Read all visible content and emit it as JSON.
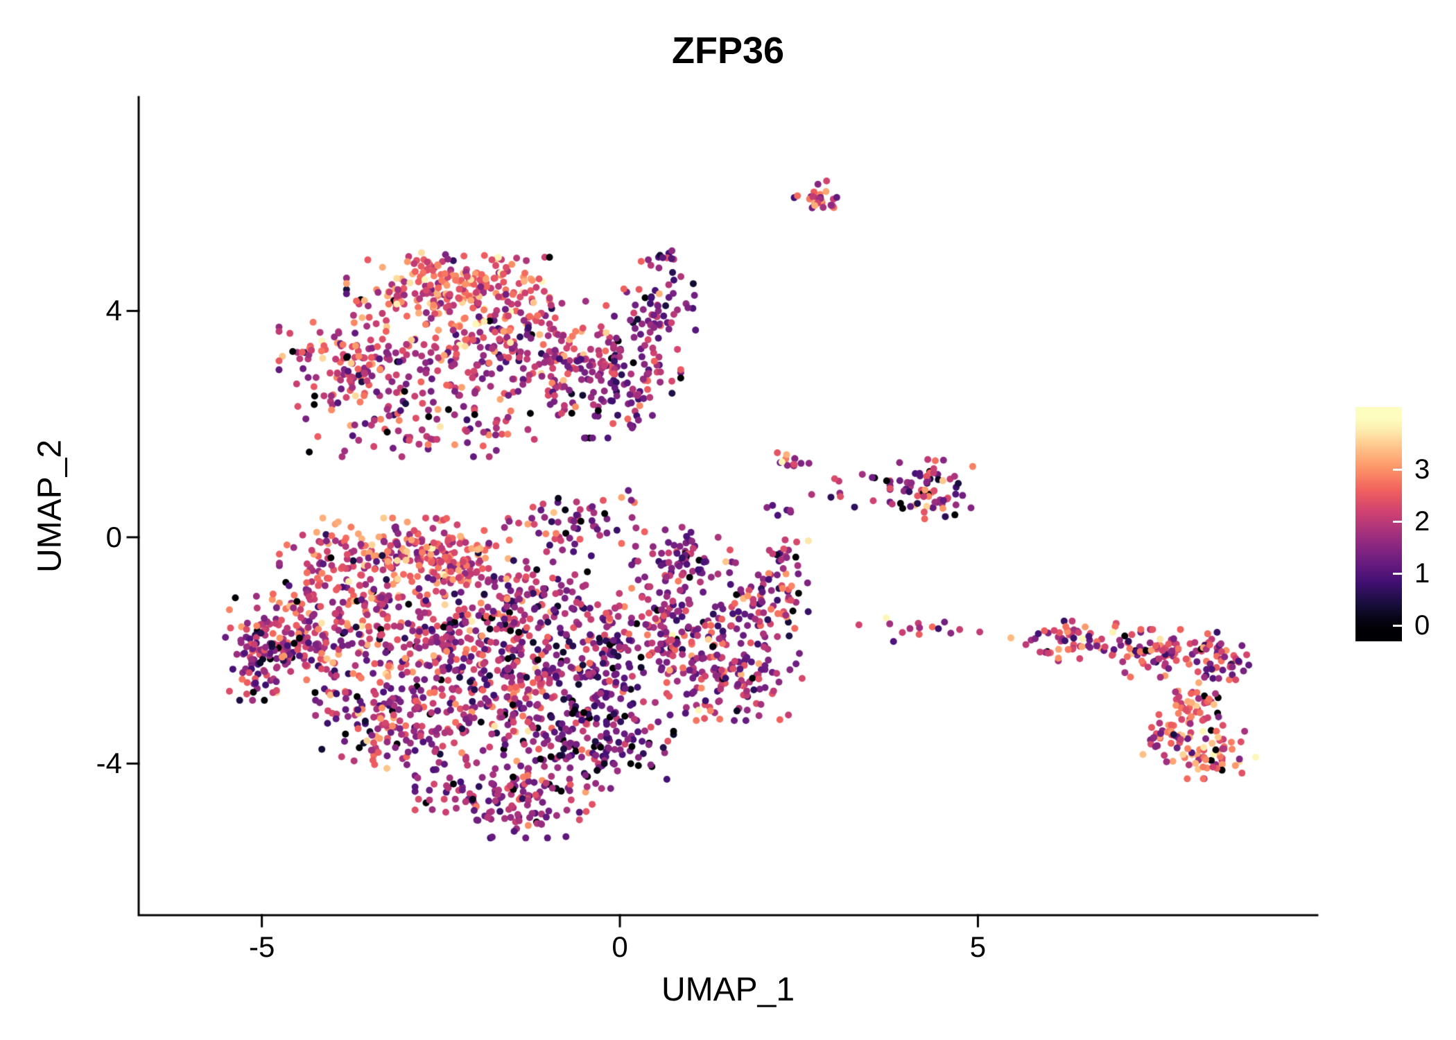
{
  "chart_data": {
    "type": "scatter",
    "title": "ZFP36",
    "xlabel": "UMAP_1",
    "ylabel": "UMAP_2",
    "xlim": [
      -6.72,
      9.74
    ],
    "ylim": [
      -6.68,
      7.78
    ],
    "grid": false,
    "background": "#ffffff",
    "axis_color": "#000000",
    "x_ticks": [
      {
        "label": "-5",
        "value": -5
      },
      {
        "label": "0",
        "value": 0
      },
      {
        "label": "5",
        "value": 5
      }
    ],
    "y_ticks": [
      {
        "label": "4",
        "value": 4
      },
      {
        "label": "0",
        "value": 0
      },
      {
        "label": "-4",
        "value": -4
      }
    ],
    "legend": {
      "position": "right",
      "vmin": 0,
      "vmax": 3.9,
      "pad": 0.3,
      "ticks": [
        {
          "label": "3",
          "value": 3
        },
        {
          "label": "2",
          "value": 2
        },
        {
          "label": "1",
          "value": 1
        },
        {
          "label": "0",
          "value": 0
        }
      ]
    },
    "colormap": {
      "name": "magma",
      "stops": [
        "#000004",
        "#180f3e",
        "#451077",
        "#721f81",
        "#9f2f7f",
        "#cd4071",
        "#f1605d",
        "#fd9567",
        "#fec98d",
        "#fcfdbf"
      ]
    },
    "point_radius_px": 5,
    "seed": 42,
    "clusters": [
      {
        "cx": -2.4,
        "cy": 4.4,
        "rx": 1.35,
        "ry": 0.6,
        "n": 230,
        "v_mean": 2.5,
        "v_sd": 0.7,
        "p_zero": 0.02
      },
      {
        "cx": -3.5,
        "cy": 3.1,
        "rx": 1.2,
        "ry": 0.75,
        "n": 170,
        "v_mean": 2.1,
        "v_sd": 0.7,
        "p_zero": 0.03
      },
      {
        "cx": -1.4,
        "cy": 3.4,
        "rx": 1.25,
        "ry": 0.85,
        "n": 200,
        "v_mean": 2.0,
        "v_sd": 0.7,
        "p_zero": 0.03
      },
      {
        "cx": -0.2,
        "cy": 2.7,
        "rx": 1.0,
        "ry": 0.9,
        "n": 140,
        "v_mean": 1.6,
        "v_sd": 0.6,
        "p_zero": 0.04
      },
      {
        "cx": 0.5,
        "cy": 3.9,
        "rx": 0.55,
        "ry": 0.75,
        "n": 60,
        "v_mean": 1.5,
        "v_sd": 0.6,
        "p_zero": 0.04
      },
      {
        "cx": -2.6,
        "cy": 2.0,
        "rx": 1.7,
        "ry": 0.55,
        "n": 90,
        "v_mean": 1.9,
        "v_sd": 0.7,
        "p_zero": 0.03
      },
      {
        "cx": 0.55,
        "cy": 4.9,
        "rx": 0.35,
        "ry": 0.25,
        "n": 14,
        "v_mean": 1.8,
        "v_sd": 0.8,
        "p_zero": 0.05
      },
      {
        "cx": 2.75,
        "cy": 6.0,
        "rx": 0.3,
        "ry": 0.3,
        "n": 30,
        "v_mean": 2.2,
        "v_sd": 0.7,
        "p_zero": 0.02
      },
      {
        "cx": 4.35,
        "cy": 0.85,
        "rx": 0.55,
        "ry": 0.5,
        "n": 72,
        "v_mean": 1.7,
        "v_sd": 0.8,
        "p_zero": 0.06
      },
      {
        "cx": 2.35,
        "cy": 1.35,
        "rx": 0.28,
        "ry": 0.18,
        "n": 14,
        "v_mean": 2.3,
        "v_sd": 0.6,
        "p_zero": 0.0
      },
      {
        "cx": 3.2,
        "cy": 0.9,
        "rx": 0.55,
        "ry": 0.35,
        "n": 12,
        "v_mean": 1.5,
        "v_sd": 0.8,
        "p_zero": 0.1
      },
      {
        "cx": -3.6,
        "cy": -0.5,
        "rx": 1.1,
        "ry": 0.8,
        "n": 180,
        "v_mean": 2.2,
        "v_sd": 0.7,
        "p_zero": 0.02
      },
      {
        "cx": -2.4,
        "cy": -0.35,
        "rx": 0.8,
        "ry": 0.65,
        "n": 140,
        "v_mean": 2.4,
        "v_sd": 0.6,
        "p_zero": 0.02
      },
      {
        "cx": -4.35,
        "cy": -1.8,
        "rx": 1.05,
        "ry": 0.9,
        "n": 190,
        "v_mean": 2.0,
        "v_sd": 0.7,
        "p_zero": 0.04
      },
      {
        "cx": -2.7,
        "cy": -1.8,
        "rx": 1.2,
        "ry": 1.0,
        "n": 210,
        "v_mean": 1.9,
        "v_sd": 0.7,
        "p_zero": 0.03
      },
      {
        "cx": -1.2,
        "cy": -1.2,
        "rx": 1.0,
        "ry": 0.9,
        "n": 150,
        "v_mean": 1.7,
        "v_sd": 0.7,
        "p_zero": 0.04
      },
      {
        "cx": -1.5,
        "cy": -2.8,
        "rx": 1.3,
        "ry": 0.9,
        "n": 190,
        "v_mean": 1.8,
        "v_sd": 0.7,
        "p_zero": 0.04
      },
      {
        "cx": -3.2,
        "cy": -3.3,
        "rx": 1.0,
        "ry": 0.8,
        "n": 140,
        "v_mean": 1.9,
        "v_sd": 0.7,
        "p_zero": 0.03
      },
      {
        "cx": -0.2,
        "cy": -2.2,
        "rx": 0.9,
        "ry": 0.9,
        "n": 130,
        "v_mean": 1.4,
        "v_sd": 0.6,
        "p_zero": 0.06
      },
      {
        "cx": -0.3,
        "cy": -3.6,
        "rx": 1.0,
        "ry": 0.8,
        "n": 150,
        "v_mean": 1.2,
        "v_sd": 0.6,
        "p_zero": 0.08
      },
      {
        "cx": -1.6,
        "cy": -4.4,
        "rx": 1.2,
        "ry": 0.6,
        "n": 110,
        "v_mean": 1.7,
        "v_sd": 0.6,
        "p_zero": 0.04
      },
      {
        "cx": 0.8,
        "cy": -1.6,
        "rx": 0.9,
        "ry": 0.9,
        "n": 130,
        "v_mean": 1.8,
        "v_sd": 0.7,
        "p_zero": 0.04
      },
      {
        "cx": 1.6,
        "cy": -2.4,
        "rx": 0.9,
        "ry": 0.8,
        "n": 130,
        "v_mean": 1.9,
        "v_sd": 0.7,
        "p_zero": 0.03
      },
      {
        "cx": 0.9,
        "cy": -0.4,
        "rx": 0.7,
        "ry": 0.55,
        "n": 70,
        "v_mean": 1.5,
        "v_sd": 0.6,
        "p_zero": 0.05
      },
      {
        "cx": 2.0,
        "cy": -1.2,
        "rx": 0.6,
        "ry": 0.6,
        "n": 70,
        "v_mean": 1.8,
        "v_sd": 0.7,
        "p_zero": 0.04
      },
      {
        "cx": -5.0,
        "cy": -2.2,
        "rx": 0.5,
        "ry": 0.65,
        "n": 70,
        "v_mean": 1.6,
        "v_sd": 0.8,
        "p_zero": 0.08
      },
      {
        "cx": -0.6,
        "cy": 0.3,
        "rx": 0.9,
        "ry": 0.5,
        "n": 60,
        "v_mean": 1.8,
        "v_sd": 0.7,
        "p_zero": 0.04
      },
      {
        "cx": -1.3,
        "cy": -5.0,
        "rx": 0.7,
        "ry": 0.3,
        "n": 40,
        "v_mean": 1.6,
        "v_sd": 0.6,
        "p_zero": 0.04
      },
      {
        "cx": 2.3,
        "cy": -0.3,
        "rx": 0.35,
        "ry": 0.35,
        "n": 18,
        "v_mean": 1.6,
        "v_sd": 0.7,
        "p_zero": 0.05
      },
      {
        "cx": 4.2,
        "cy": -1.7,
        "rx": 1.2,
        "ry": 0.3,
        "n": 16,
        "v_mean": 1.9,
        "v_sd": 0.9,
        "p_zero": 0.08
      },
      {
        "cx": 6.3,
        "cy": -1.85,
        "rx": 0.6,
        "ry": 0.35,
        "n": 55,
        "v_mean": 2.1,
        "v_sd": 0.7,
        "p_zero": 0.02
      },
      {
        "cx": 7.5,
        "cy": -2.05,
        "rx": 0.8,
        "ry": 0.4,
        "n": 90,
        "v_mean": 2.0,
        "v_sd": 0.7,
        "p_zero": 0.03
      },
      {
        "cx": 8.45,
        "cy": -2.1,
        "rx": 0.4,
        "ry": 0.4,
        "n": 40,
        "v_mean": 1.7,
        "v_sd": 0.7,
        "p_zero": 0.04
      },
      {
        "cx": 8.0,
        "cy": -3.0,
        "rx": 0.45,
        "ry": 0.5,
        "n": 55,
        "v_mean": 2.5,
        "v_sd": 0.6,
        "p_zero": 0.02
      },
      {
        "cx": 8.3,
        "cy": -3.85,
        "rx": 0.55,
        "ry": 0.4,
        "n": 60,
        "v_mean": 2.4,
        "v_sd": 0.7,
        "p_zero": 0.02
      },
      {
        "cx": 7.55,
        "cy": -3.6,
        "rx": 0.3,
        "ry": 0.35,
        "n": 25,
        "v_mean": 2.0,
        "v_sd": 0.7,
        "p_zero": 0.03
      },
      {
        "cx": 2.1,
        "cy": 0.5,
        "rx": 0.3,
        "ry": 0.25,
        "n": 6,
        "v_mean": 1.0,
        "v_sd": 0.8,
        "p_zero": 0.2
      }
    ]
  }
}
